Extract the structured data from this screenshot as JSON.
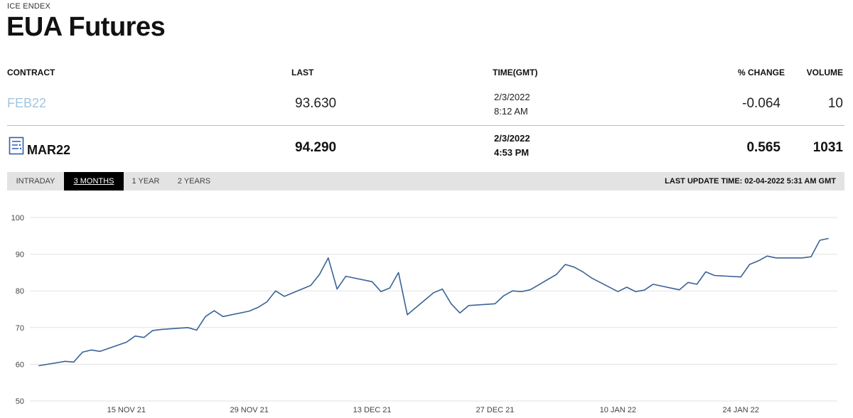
{
  "header": {
    "eyebrow": "ICE ENDEX",
    "title": "EUA Futures"
  },
  "table": {
    "columns": {
      "contract": "CONTRACT",
      "last": "LAST",
      "time": "TIME(GMT)",
      "change": "% CHANGE",
      "volume": "VOLUME"
    },
    "rows": [
      {
        "contract": "FEB22",
        "last": "93.630",
        "date": "2/3/2022",
        "time": "8:12 AM",
        "change": "-0.064",
        "volume": "10"
      },
      {
        "contract": "MAR22",
        "last": "94.290",
        "date": "2/3/2022",
        "time": "4:53 PM",
        "change": "0.565",
        "volume": "1031",
        "icon": "document-list-icon"
      }
    ]
  },
  "tabs": {
    "items": [
      "INTRADAY",
      "3 MONTHS",
      "1 YEAR",
      "2 YEARS"
    ],
    "active": "3 MONTHS",
    "last_update": "LAST UPDATE TIME: 02-04-2022 5:31 AM GMT"
  },
  "colors": {
    "line": "#3a6396",
    "grid": "#e2e2e2",
    "feb_link": "#9fc6dd"
  },
  "chart_data": {
    "type": "line",
    "title": "",
    "xlabel": "",
    "ylabel": "",
    "ylim": [
      50,
      100
    ],
    "yticks": [
      50,
      60,
      70,
      80,
      90,
      100
    ],
    "grid": true,
    "xlim": [
      "2021-11-04",
      "2022-02-04"
    ],
    "xticks": [
      {
        "date": "2021-11-15",
        "label": "15 NOV 21"
      },
      {
        "date": "2021-11-29",
        "label": "29 NOV 21"
      },
      {
        "date": "2021-12-13",
        "label": "13 DEC 21"
      },
      {
        "date": "2021-12-27",
        "label": "27 DEC 21"
      },
      {
        "date": "2022-01-10",
        "label": "10 JAN 22"
      },
      {
        "date": "2022-01-24",
        "label": "24 JAN 22"
      }
    ],
    "series": [
      {
        "x": [
          "2021-11-05",
          "2021-11-08",
          "2021-11-09",
          "2021-11-10",
          "2021-11-11",
          "2021-11-12",
          "2021-11-15",
          "2021-11-16",
          "2021-11-17",
          "2021-11-18",
          "2021-11-19",
          "2021-11-22",
          "2021-11-23",
          "2021-11-24",
          "2021-11-25",
          "2021-11-26",
          "2021-11-29",
          "2021-11-30",
          "2021-12-01",
          "2021-12-02",
          "2021-12-03",
          "2021-12-06",
          "2021-12-07",
          "2021-12-08",
          "2021-12-09",
          "2021-12-10",
          "2021-12-13",
          "2021-12-14",
          "2021-12-15",
          "2021-12-16",
          "2021-12-17",
          "2021-12-20",
          "2021-12-21",
          "2021-12-22",
          "2021-12-23",
          "2021-12-24",
          "2021-12-27",
          "2021-12-28",
          "2021-12-29",
          "2021-12-30",
          "2021-12-31",
          "2022-01-03",
          "2022-01-04",
          "2022-01-05",
          "2022-01-06",
          "2022-01-07",
          "2022-01-10",
          "2022-01-11",
          "2022-01-12",
          "2022-01-13",
          "2022-01-14",
          "2022-01-17",
          "2022-01-18",
          "2022-01-19",
          "2022-01-20",
          "2022-01-21",
          "2022-01-24",
          "2022-01-25",
          "2022-01-26",
          "2022-01-27",
          "2022-01-28",
          "2022-01-31",
          "2022-02-01",
          "2022-02-02",
          "2022-02-03"
        ],
        "y": [
          59.6,
          60.8,
          60.6,
          63.3,
          63.9,
          63.5,
          66.0,
          67.7,
          67.3,
          69.2,
          69.5,
          70.0,
          69.3,
          73.0,
          74.6,
          73.0,
          74.5,
          75.5,
          77.0,
          80.0,
          78.5,
          81.5,
          84.5,
          89.0,
          80.5,
          84.0,
          82.5,
          79.8,
          80.8,
          85.0,
          73.5,
          79.5,
          80.5,
          76.5,
          74.0,
          76.0,
          76.5,
          78.7,
          80.0,
          79.8,
          80.3,
          84.5,
          87.2,
          86.5,
          85.2,
          83.5,
          79.8,
          81.0,
          79.8,
          80.2,
          81.8,
          80.3,
          82.3,
          81.8,
          85.2,
          84.2,
          83.8,
          87.2,
          88.2,
          89.5,
          89.0,
          89.0,
          89.3,
          93.8,
          94.3
        ]
      }
    ]
  }
}
